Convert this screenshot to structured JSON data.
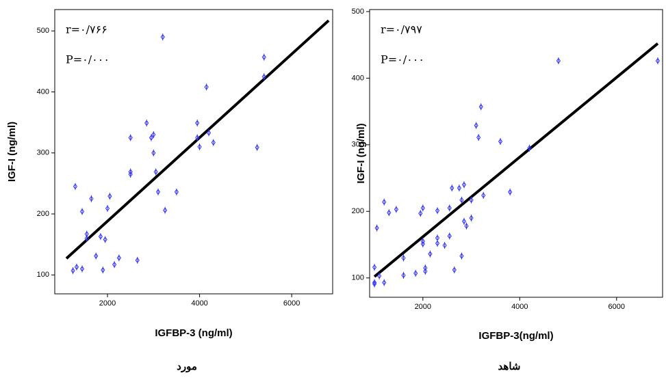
{
  "chart_data": [
    {
      "type": "scatter",
      "x_label": "IGFBP-3 (ng/ml)",
      "y_label": "IGF-I (ng/ml)",
      "caption": "مورد",
      "annotations": [
        "r=۰/۷۶۶",
        "P=۰/۰۰۰"
      ],
      "xlim": [
        855,
        6890
      ],
      "ylim": [
        69,
        535
      ],
      "xticks": [
        2000,
        4000,
        6000
      ],
      "yticks": [
        100,
        200,
        300,
        400,
        500
      ],
      "series": [
        {
          "color": "#3333ff",
          "x": [
            1300,
            1250,
            1330,
            1450,
            1450,
            1550,
            1550,
            1650,
            1750,
            1850,
            1900,
            1950,
            2000,
            2050,
            2150,
            2250,
            2500,
            2500,
            2500,
            2650,
            2850,
            2950,
            3000,
            3000,
            3050,
            3100,
            3200,
            3250,
            3500,
            3950,
            3950,
            4000,
            4150,
            4200,
            4300,
            5250,
            5400,
            5400
          ],
          "y": [
            245,
            107,
            113,
            110,
            204,
            167,
            160,
            225,
            131,
            163,
            108,
            158,
            209,
            229,
            117,
            128,
            325,
            269,
            265,
            124,
            349,
            325,
            330,
            300,
            269,
            236,
            490,
            206,
            236,
            349,
            325,
            310,
            408,
            333,
            317,
            309,
            457,
            425
          ]
        }
      ],
      "fit": {
        "color": "#000000",
        "x": [
          1108,
          6803
        ],
        "y": [
          127,
          517
        ]
      }
    },
    {
      "type": "scatter",
      "x_label": "IGFBP-3(ng/ml)",
      "y_label": "IGF-I (ng/ml)",
      "caption": "شاهد",
      "annotations": [
        "r=۰/۷۹۷",
        "P=۰/۰۰۰"
      ],
      "xlim": [
        900,
        6950
      ],
      "ylim": [
        71,
        503
      ],
      "xticks": [
        2000,
        4000,
        6000
      ],
      "yticks": [
        100,
        200,
        300,
        400,
        500
      ],
      "series": [
        {
          "color": "#3333ff",
          "x": [
            1000,
            1000,
            1000,
            1050,
            1100,
            1200,
            1200,
            1300,
            1450,
            1600,
            1600,
            1850,
            1950,
            2000,
            2000,
            2000,
            2050,
            2050,
            2150,
            2300,
            2300,
            2300,
            2450,
            2550,
            2550,
            2600,
            2650,
            2750,
            2800,
            2800,
            2850,
            2850,
            2900,
            3000,
            3000,
            3100,
            3150,
            3200,
            3250,
            3600,
            3800,
            4200,
            4800,
            6850
          ],
          "y": [
            93,
            91,
            116,
            175,
            103,
            93,
            214,
            198,
            203,
            130,
            104,
            107,
            197,
            205,
            155,
            151,
            110,
            115,
            136,
            201,
            160,
            152,
            149,
            205,
            163,
            235,
            112,
            235,
            133,
            217,
            240,
            185,
            178,
            217,
            190,
            329,
            311,
            357,
            224,
            305,
            229,
            295,
            426,
            426
          ]
        }
      ],
      "fit": {
        "color": "#000000",
        "x": [
          1000,
          6850
        ],
        "y": [
          102,
          452
        ]
      }
    }
  ]
}
